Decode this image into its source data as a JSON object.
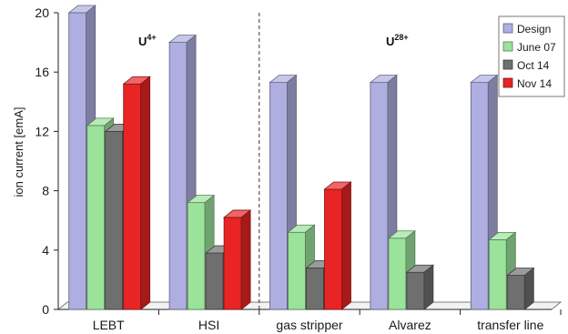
{
  "chart_data": {
    "type": "bar",
    "ylabel": "ion current  [emA]",
    "ylim": [
      0,
      20
    ],
    "yticks": [
      0,
      4,
      8,
      12,
      16,
      20
    ],
    "categories": [
      "LEBT",
      "HSI",
      "gas stripper",
      "Alvarez",
      "transfer line"
    ],
    "series": [
      {
        "name": "Design",
        "values": [
          20,
          18,
          15.3,
          15.3,
          15.3
        ],
        "color": "#aeaee0"
      },
      {
        "name": "June 07",
        "values": [
          12.4,
          7.2,
          5.2,
          4.8,
          4.7
        ],
        "color": "#9be39b"
      },
      {
        "name": "Oct 14",
        "values": [
          12,
          3.8,
          2.8,
          2.5,
          2.3
        ],
        "color": "#6f6f6f"
      },
      {
        "name": "Nov 14",
        "values": [
          15.2,
          6.2,
          8.1,
          null,
          null
        ],
        "color": "#e82424"
      }
    ],
    "legend_position": "top-right",
    "annotations": [
      {
        "base": "U",
        "sup": "4+"
      },
      {
        "base": "U",
        "sup": "28+"
      }
    ],
    "separator_after_category": "HSI"
  }
}
